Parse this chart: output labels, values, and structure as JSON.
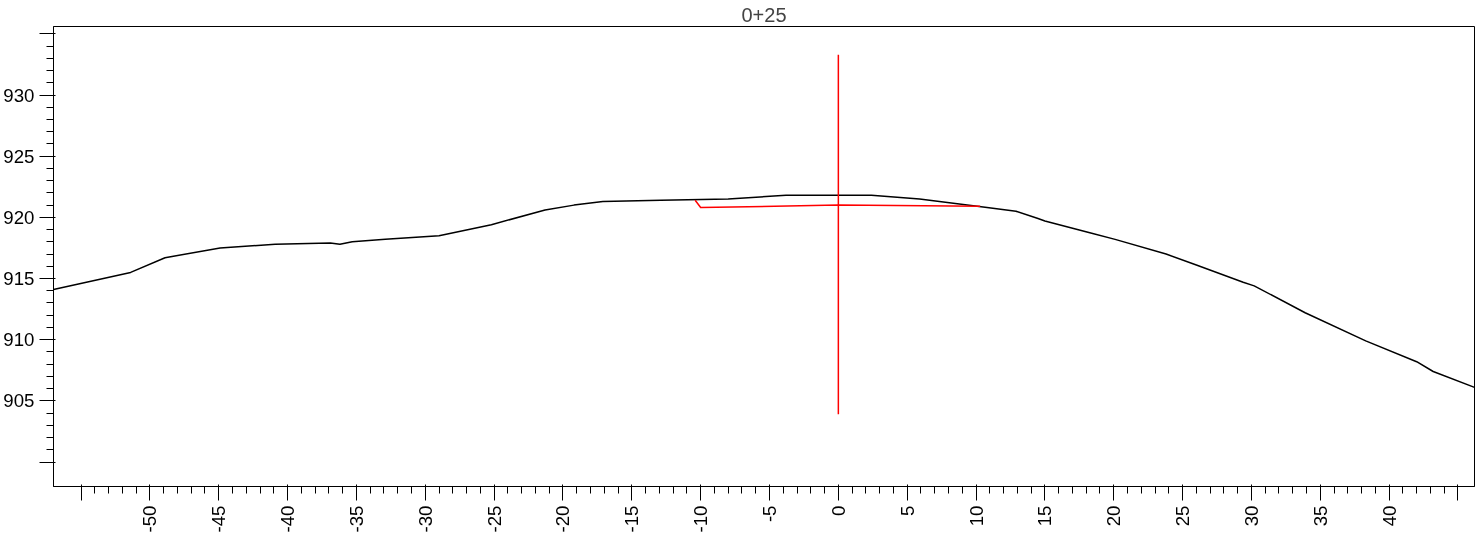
{
  "chart_data": {
    "type": "line",
    "title": "0+25",
    "xlim": [
      -57,
      46.2
    ],
    "ylim": [
      898,
      935.6
    ],
    "xticks": [
      {
        "value": -55,
        "label": null
      },
      -50,
      -45,
      -40,
      -35,
      -30,
      -25,
      -20,
      -15,
      -10,
      -5,
      0,
      5,
      10,
      15,
      20,
      25,
      30,
      35,
      40,
      {
        "value": 45,
        "label": null
      }
    ],
    "yticks": [
      {
        "value": 900,
        "label": null
      },
      905,
      910,
      915,
      920,
      925,
      930,
      {
        "value": 935,
        "label": null
      }
    ],
    "grid": false,
    "marker": "none",
    "line_style": "solid",
    "series": [
      {
        "color": "#000000",
        "x": [
          -57.0,
          -51.4,
          -48.9,
          -44.9,
          -40.9,
          -36.9,
          -36.2,
          -35.3,
          -32.9,
          -29.0,
          -25.2,
          -21.3,
          -19.2,
          -17.1,
          -12.9,
          -8.0,
          -3.8,
          0,
          2.4,
          5.9,
          10.8,
          12.9,
          14.5,
          15.0,
          18.4,
          20.1,
          23.8,
          26.0,
          29.4,
          30.2,
          33.9,
          38.3,
          42.0,
          43.2,
          46.2
        ],
        "values": [
          914.1,
          915.5,
          916.7,
          917.5,
          917.8,
          917.9,
          917.8,
          918.0,
          918.2,
          918.5,
          919.4,
          920.6,
          921.0,
          921.3,
          921.4,
          921.5,
          921.8,
          921.8,
          921.8,
          921.5,
          920.8,
          920.5,
          919.9,
          919.7,
          918.7,
          918.2,
          917.0,
          916.1,
          914.7,
          914.4,
          912.2,
          909.9,
          908.2,
          907.4,
          906.1
        ]
      },
      {
        "color": "#ff0000",
        "x": [
          -10.4,
          -10.0,
          0,
          10.3
        ],
        "values": [
          921.4,
          920.8,
          921.0,
          920.9
        ]
      },
      {
        "color": "#ff0000",
        "x": [
          0,
          0
        ],
        "values": [
          933.3,
          903.9
        ]
      }
    ]
  }
}
